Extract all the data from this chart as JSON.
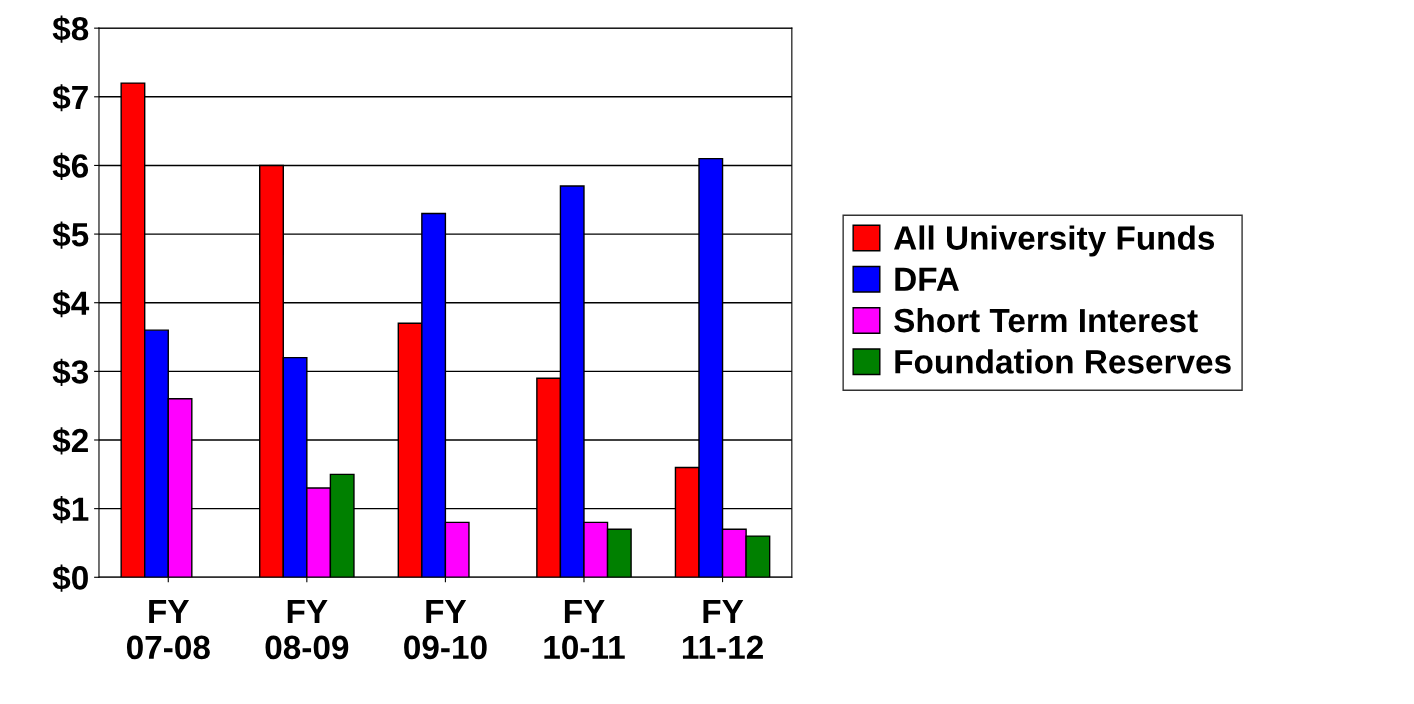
{
  "chart_data": {
    "type": "bar",
    "categories": [
      "FY\n07-08",
      "FY\n08-09",
      "FY\n09-10",
      "FY\n10-11",
      "FY\n11-12"
    ],
    "series": [
      {
        "name": "All University Funds",
        "color": "#ff0000",
        "values": [
          7.2,
          6.0,
          3.7,
          2.9,
          1.6
        ]
      },
      {
        "name": "DFA",
        "color": "#0000ff",
        "values": [
          3.6,
          3.2,
          5.3,
          5.7,
          6.1
        ]
      },
      {
        "name": "Short Term Interest",
        "color": "#ff00ff",
        "values": [
          2.6,
          1.3,
          0.8,
          0.8,
          0.7
        ]
      },
      {
        "name": "Foundation Reserves",
        "color": "#008000",
        "values": [
          null,
          1.5,
          null,
          0.7,
          0.6
        ]
      }
    ],
    "ylim": [
      0,
      8
    ],
    "yticks": [
      {
        "value": 0,
        "label": "$0"
      },
      {
        "value": 1,
        "label": "$1"
      },
      {
        "value": 2,
        "label": "$2"
      },
      {
        "value": 3,
        "label": "$3"
      },
      {
        "value": 4,
        "label": "$4"
      },
      {
        "value": 5,
        "label": "$5"
      },
      {
        "value": 6,
        "label": "$6"
      },
      {
        "value": 7,
        "label": "$7"
      },
      {
        "value": 8,
        "label": "$8"
      }
    ],
    "grid": "y",
    "legend": "right"
  }
}
